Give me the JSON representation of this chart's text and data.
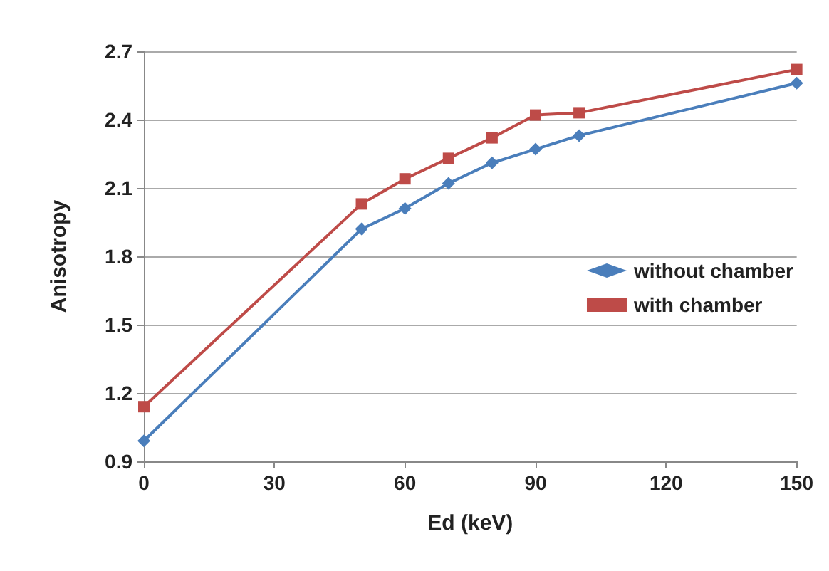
{
  "chart_data": {
    "type": "line",
    "xlabel": "Ed (keV)",
    "ylabel": "Anisotropy",
    "x": [
      0,
      50,
      60,
      70,
      80,
      90,
      100,
      150
    ],
    "series": [
      {
        "name": "without chamber",
        "color": "#4a7ebb",
        "marker": "diamond",
        "values": [
          0.99,
          1.92,
          2.01,
          2.12,
          2.21,
          2.27,
          2.33,
          2.56
        ]
      },
      {
        "name": "with chamber",
        "color": "#be4b48",
        "marker": "square",
        "values": [
          1.14,
          2.03,
          2.14,
          2.23,
          2.32,
          2.42,
          2.43,
          2.62
        ]
      }
    ],
    "xlim": [
      0,
      150
    ],
    "xticks": [
      0,
      30,
      60,
      90,
      120,
      150
    ],
    "ylim": [
      0.9,
      2.7
    ],
    "yticks": [
      0.9,
      1.2,
      1.5,
      1.8,
      2.1,
      2.4,
      2.7
    ],
    "grid": "y",
    "legend": "right"
  }
}
